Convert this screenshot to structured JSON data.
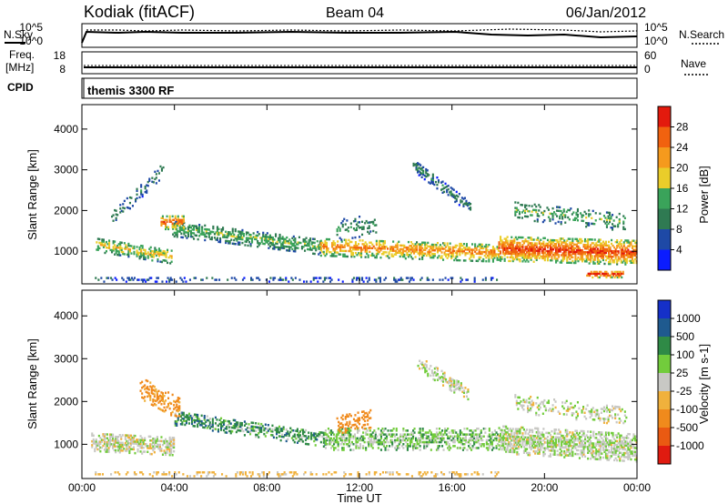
{
  "header": {
    "station": "Kodiak (fitACF)",
    "beam": "Beam 04",
    "date": "06/Jan/2012"
  },
  "panels": {
    "nsky_label": "N.Sky",
    "nsearch_label": "N.Search",
    "noise_ticks_left": [
      "10^5",
      "10^0"
    ],
    "noise_ticks_right": [
      "10^5",
      "10^0"
    ],
    "freq_label_1": "Freq.",
    "freq_label_2": "[MHz]",
    "freq_ticks": [
      "18",
      "8"
    ],
    "nave_label": "Nave",
    "nave_ticks": [
      "60",
      "0"
    ],
    "cpid_label": "CPID",
    "cpid_text": "themis 3300 RF"
  },
  "colors": {
    "power": [
      "#0b1cff",
      "#1e49a6",
      "#2f7a52",
      "#3aa35a",
      "#eacd2a",
      "#f59a1d",
      "#f1620f",
      "#e31a0d"
    ],
    "velocity": [
      "#1530c8",
      "#1f5a8f",
      "#2f8a46",
      "#72cc3c",
      "#c8c8c4",
      "#f0b13c",
      "#f08a1c",
      "#ea5a12",
      "#e01b10"
    ]
  },
  "chart_data": [
    {
      "type": "heatmap",
      "name": "power",
      "ylabel": "Slant Range [km]",
      "yticks": [
        "1000",
        "2000",
        "3000",
        "4000"
      ],
      "ylim": [
        200,
        4600
      ],
      "xlim": [
        0,
        24
      ],
      "colorbar_label": "Power [dB]",
      "colorbar_ticks": [
        "4",
        "8",
        "12",
        "16",
        "20",
        "24",
        "28"
      ],
      "colorbar_range": [
        0,
        32
      ],
      "features": [
        {
          "t0": 0.6,
          "t1": 3.9,
          "r0": 1150,
          "r1": 850,
          "width": 350,
          "value": 18,
          "density": 0.65
        },
        {
          "t0": 3.9,
          "t1": 10.3,
          "r0": 1550,
          "r1": 1100,
          "width": 400,
          "value": 14,
          "density": 0.6
        },
        {
          "t0": 10.3,
          "t1": 18.0,
          "r0": 1100,
          "r1": 950,
          "width": 450,
          "value": 22,
          "density": 0.65
        },
        {
          "t0": 18.0,
          "t1": 24.0,
          "r0": 1050,
          "r1": 950,
          "width": 600,
          "value": 26,
          "density": 0.85
        },
        {
          "t0": 21.8,
          "t1": 23.4,
          "r0": 420,
          "r1": 420,
          "width": 160,
          "value": 29,
          "density": 0.9
        },
        {
          "t0": 3.4,
          "t1": 4.4,
          "r0": 1700,
          "r1": 1700,
          "width": 350,
          "value": 24,
          "density": 0.7
        },
        {
          "t0": 14.3,
          "t1": 16.8,
          "r0": 3100,
          "r1": 2050,
          "width": 300,
          "value": 10,
          "density": 0.45
        },
        {
          "t0": 1.2,
          "t1": 3.5,
          "r0": 1750,
          "r1": 3000,
          "width": 350,
          "value": 9,
          "density": 0.3
        },
        {
          "t0": 11.0,
          "t1": 12.7,
          "r0": 1500,
          "r1": 1650,
          "width": 500,
          "value": 11,
          "density": 0.35
        },
        {
          "t0": 0.5,
          "t1": 18.0,
          "r0": 300,
          "r1": 300,
          "width": 130,
          "value": 7,
          "density": 0.3
        },
        {
          "t0": 18.7,
          "t1": 23.5,
          "r0": 2000,
          "r1": 1700,
          "width": 450,
          "value": 13,
          "density": 0.3
        }
      ]
    },
    {
      "type": "heatmap",
      "name": "velocity",
      "ylabel": "Slant Range [km]",
      "yticks": [
        "1000",
        "2000",
        "3000",
        "4000"
      ],
      "ylim": [
        200,
        4600
      ],
      "xlim": [
        0,
        24
      ],
      "xlabel": "Time UT",
      "xticks": [
        "00:00",
        "04:00",
        "08:00",
        "12:00",
        "16:00",
        "20:00",
        "00:00"
      ],
      "colorbar_label": "Velocity [m s-1]",
      "colorbar_ticks": [
        "1000",
        "500",
        "100",
        "25",
        "-25",
        "-100",
        "-500",
        "-1000"
      ],
      "features": [
        {
          "t0": 0.4,
          "t1": 4.0,
          "r0": 1050,
          "r1": 950,
          "width": 450,
          "value": -10,
          "density": 0.7
        },
        {
          "t0": 4.0,
          "t1": 10.5,
          "r0": 1600,
          "r1": 1100,
          "width": 350,
          "value": 60,
          "density": 0.55
        },
        {
          "t0": 10.5,
          "t1": 18.0,
          "r0": 1100,
          "r1": 1100,
          "width": 500,
          "value": 10,
          "density": 0.6
        },
        {
          "t0": 18.0,
          "t1": 24.0,
          "r0": 1100,
          "r1": 900,
          "width": 650,
          "value": -5,
          "density": 0.75
        },
        {
          "t0": 2.5,
          "t1": 4.2,
          "r0": 2300,
          "r1": 1800,
          "width": 500,
          "value": -150,
          "density": 0.45
        },
        {
          "t0": 14.5,
          "t1": 16.7,
          "r0": 2900,
          "r1": 2150,
          "width": 350,
          "value": -10,
          "density": 0.45
        },
        {
          "t0": 11.0,
          "t1": 12.5,
          "r0": 1450,
          "r1": 1600,
          "width": 450,
          "value": -200,
          "density": 0.4
        },
        {
          "t0": 18.7,
          "t1": 23.5,
          "r0": 1950,
          "r1": 1650,
          "width": 450,
          "value": -10,
          "density": 0.35
        },
        {
          "t0": 0.5,
          "t1": 18.0,
          "r0": 300,
          "r1": 300,
          "width": 130,
          "value": -40,
          "density": 0.3
        }
      ]
    }
  ]
}
